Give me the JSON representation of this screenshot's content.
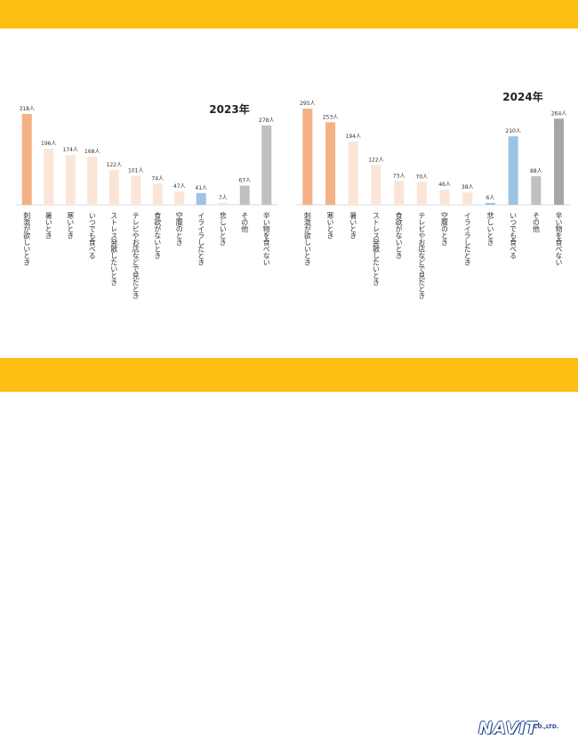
{
  "colors": {
    "band": "#fdbf12",
    "top": "#f4b183",
    "mid": "#fbe5d6",
    "blue": "#9dc3e6",
    "gray": "#c0c0c0",
    "dark": "#a6a6a6"
  },
  "logo": {
    "brand": "NAVIT",
    "suffix": "CO.,LTD.",
    "url": "www.navit-j.com"
  },
  "chart_data": [
    {
      "type": "bar",
      "title": "2023年",
      "categories": [
        "刺激が欲しいとき",
        "暑いとき",
        "寒いとき",
        "いつでも食べる",
        "ストレス発散したいとき",
        "テレビやお店などで見たとき",
        "食欲がないとき",
        "空腹のとき",
        "イライラしたとき",
        "悲しいとき",
        "その他",
        "辛い物を食べない"
      ],
      "values": [
        318,
        196,
        174,
        168,
        122,
        101,
        74,
        47,
        41,
        7,
        67,
        278
      ],
      "data_labels": [
        "318人",
        "196人",
        "174人",
        "168人",
        "122人",
        "101人",
        "74人",
        "47人",
        "41人",
        "7人",
        "67人",
        "278人"
      ],
      "bar_colors": [
        "top",
        "mid",
        "mid",
        "mid",
        "mid",
        "mid",
        "mid",
        "mid",
        "blue",
        "mid",
        "gray",
        "gray"
      ],
      "ylim": [
        0,
        318
      ],
      "grid": false
    },
    {
      "type": "bar",
      "title": "2024年",
      "categories": [
        "刺激が欲しいとき",
        "寒いとき",
        "暑いとき",
        "ストレス発散したいとき",
        "食欲がないとき",
        "テレビやお店などで見たとき",
        "空腹のとき",
        "イライラしたとき",
        "悲しいとき",
        "いつでも食べる",
        "その他",
        "辛い物を食べない"
      ],
      "values": [
        295,
        253,
        194,
        122,
        73,
        70,
        46,
        38,
        6,
        210,
        88,
        264
      ],
      "data_labels": [
        "295人",
        "253人",
        "194人",
        "122人",
        "73人",
        "70人",
        "46人",
        "38人",
        "6人",
        "210人",
        "88人",
        "264人"
      ],
      "bar_colors": [
        "top",
        "top",
        "mid",
        "mid",
        "mid",
        "mid",
        "mid",
        "mid",
        "blue",
        "blue",
        "gray",
        "dark"
      ],
      "ylim": [
        0,
        295
      ],
      "grid": false
    }
  ]
}
